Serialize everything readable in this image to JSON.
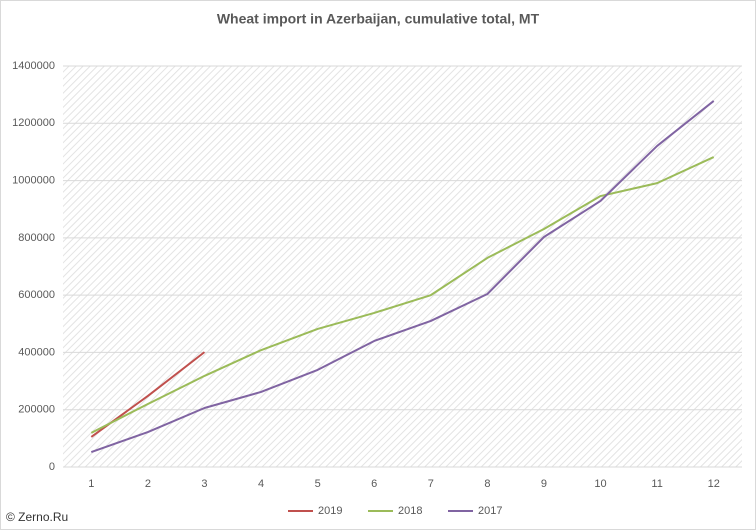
{
  "chart_data": {
    "type": "line",
    "title": "Wheat import in Azerbaijan, cumulative total, MT",
    "categories": [
      1,
      2,
      3,
      4,
      5,
      6,
      7,
      8,
      9,
      10,
      11,
      12
    ],
    "series": [
      {
        "name": "2019",
        "color": "#c0504d",
        "values": [
          105000,
          248000,
          401000,
          null,
          null,
          null,
          null,
          null,
          null,
          null,
          null,
          null
        ]
      },
      {
        "name": "2018",
        "color": "#9bbb59",
        "values": [
          119000,
          220000,
          318000,
          408000,
          482000,
          538000,
          600000,
          730000,
          831000,
          946000,
          991000,
          1082000
        ]
      },
      {
        "name": "2017",
        "color": "#8064a2",
        "values": [
          52000,
          122000,
          206000,
          262000,
          339000,
          440000,
          510000,
          604000,
          803000,
          929000,
          1121000,
          1278000
        ]
      }
    ],
    "ylim": [
      0,
      1400000
    ],
    "yticks": [
      0,
      200000,
      400000,
      600000,
      800000,
      1000000,
      1200000,
      1400000
    ],
    "grid": true,
    "legend": "bottom",
    "annotation": "© Zerno.Ru"
  }
}
